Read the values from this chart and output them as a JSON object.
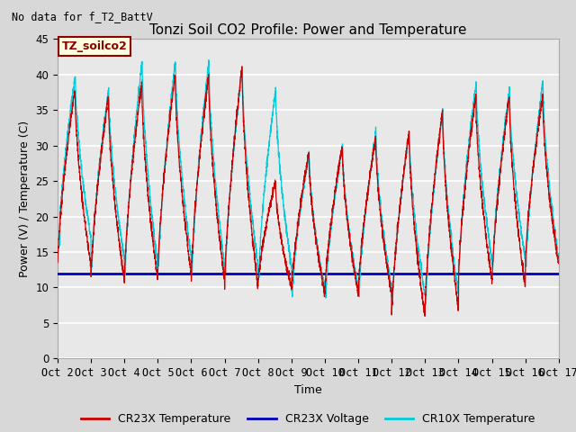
{
  "title": "Tonzi Soil CO2 Profile: Power and Temperature",
  "subtitle": "No data for f_T2_BattV",
  "xlabel": "Time",
  "ylabel": "Power (V) / Temperature (C)",
  "ylim": [
    0,
    45
  ],
  "xlim": [
    0,
    15
  ],
  "xtick_labels": [
    "Oct 2",
    "Oct 3",
    "Oct 4",
    "Oct 5",
    "Oct 6",
    "Oct 7",
    "Oct 8",
    "Oct 9",
    "Oct 10",
    "Oct 11",
    "Oct 12",
    "Oct 13",
    "Oct 14",
    "Oct 15",
    "Oct 16",
    "Oct 17"
  ],
  "ytick_values": [
    0,
    5,
    10,
    15,
    20,
    25,
    30,
    35,
    40,
    45
  ],
  "voltage_level": 12.0,
  "voltage_color": "#0000bb",
  "cr23x_temp_color": "#cc0000",
  "cr10x_temp_color": "#00ccdd",
  "legend_label_cr23x_temp": "CR23X Temperature",
  "legend_label_cr23x_volt": "CR23X Voltage",
  "legend_label_cr10x_temp": "CR10X Temperature",
  "annotation_label": "TZ_soilco2",
  "background_color": "#d8d8d8",
  "plot_bg_color": "#e8e8e8",
  "grid_color": "#ffffff",
  "title_fontsize": 11,
  "axis_fontsize": 9,
  "tick_fontsize": 8.5
}
